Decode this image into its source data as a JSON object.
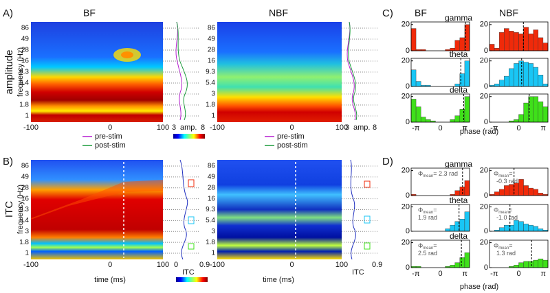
{
  "panel_labels": [
    "A)",
    "B)",
    "C)",
    "D)"
  ],
  "panel_a": {
    "title_bf": "BF",
    "title_nbf": "NBF",
    "ylabel_outer": "amplitude",
    "ylabel": "frequency (Hz)",
    "yticks": [
      "86",
      "49",
      "28",
      "16",
      "9.3",
      "5.4",
      "3",
      "1.8",
      "1"
    ],
    "xticks": [
      "-100",
      "0",
      "100"
    ],
    "legend": [
      "pre-stim",
      "post-stim"
    ],
    "legend_colors": [
      "#b51ed0",
      "#1a9a3a"
    ],
    "colorbar": {
      "min": "3",
      "label": "amp.",
      "max": "8"
    }
  },
  "panel_b": {
    "ylabel_outer": "ITC",
    "ylabel": "frequency (Hz)",
    "xlabel": "time (ms)",
    "yticks": [
      "86",
      "49",
      "28",
      "16",
      "9.3",
      "5.4",
      "3",
      "1.8",
      "1"
    ],
    "xticks": [
      "-100",
      "0",
      "100"
    ],
    "colorbar": {
      "min": "0",
      "label": "ITC",
      "max": "0.9"
    }
  },
  "panel_c": {
    "col_titles": [
      "BF",
      "NBF"
    ],
    "bands": [
      "gamma",
      "theta",
      "delta"
    ],
    "band_colors": [
      "#f02a0a",
      "#19c6f5",
      "#3fe01a"
    ],
    "ylim": [
      0,
      22
    ],
    "yticks": [
      0,
      20
    ],
    "xticks": [
      "-π",
      "0",
      "π"
    ],
    "xlabel": "phase (rad)",
    "histograms": [
      [
        [
          17,
          1,
          1,
          0,
          0,
          0,
          0,
          1,
          2,
          8,
          10,
          20
        ],
        [
          5,
          2,
          14,
          17,
          15,
          14,
          13,
          18,
          13,
          16,
          10,
          6
        ]
      ],
      [
        [
          13,
          4,
          1,
          1,
          0,
          0,
          0,
          0,
          0,
          2,
          10,
          20
        ],
        [
          1,
          2,
          5,
          8,
          14,
          18,
          20,
          19,
          18,
          15,
          9,
          2
        ]
      ],
      [
        [
          18,
          12,
          4,
          2,
          1,
          0,
          0,
          0,
          2,
          5,
          10,
          20
        ],
        [
          0,
          0,
          0,
          0,
          1,
          2,
          6,
          15,
          20,
          20,
          16,
          12
        ]
      ]
    ]
  },
  "panel_d": {
    "bands": [
      "gamma",
      "theta",
      "delta"
    ],
    "ylim": [
      0,
      22
    ],
    "yticks": [
      0,
      20
    ],
    "xticks": [
      "-π",
      "0",
      "π"
    ],
    "xlabel": "phase (rad)",
    "histograms": [
      [
        [
          1,
          0,
          0,
          0,
          0,
          0,
          0,
          0,
          1,
          4,
          7,
          12
        ],
        [
          1,
          3,
          5,
          8,
          9,
          10,
          13,
          8,
          6,
          5,
          2,
          1
        ]
      ],
      [
        [
          0,
          0,
          0,
          0,
          0,
          0,
          0,
          2,
          5,
          8,
          10,
          16
        ],
        [
          0,
          1,
          3,
          5,
          5,
          9,
          8,
          6,
          5,
          4,
          2,
          1
        ]
      ],
      [
        [
          1,
          1,
          0,
          0,
          0,
          0,
          0,
          1,
          2,
          4,
          8,
          12
        ],
        [
          0,
          0,
          0,
          0,
          1,
          2,
          4,
          5,
          5,
          6,
          7,
          6
        ]
      ]
    ],
    "annotations": [
      [
        {
          "symbol": "Φ",
          "sub": "mean",
          "lines": [
            "= 2.3 rad"
          ]
        },
        {
          "symbol": "Φ",
          "sub": "mean",
          "lines": [
            "=",
            "-0.3 rad"
          ]
        }
      ],
      [
        {
          "symbol": "Φ",
          "sub": "mean",
          "lines": [
            "=",
            "1.9 rad"
          ]
        },
        {
          "symbol": "Φ",
          "sub": "mean",
          "lines": [
            "=",
            "-1.0 rad"
          ]
        }
      ],
      [
        {
          "symbol": "Φ",
          "sub": "mean",
          "lines": [
            "=",
            "2.5 rad"
          ]
        },
        {
          "symbol": "Φ",
          "sub": "mean",
          "lines": [
            "=",
            "1.3 rad"
          ]
        }
      ]
    ]
  }
}
